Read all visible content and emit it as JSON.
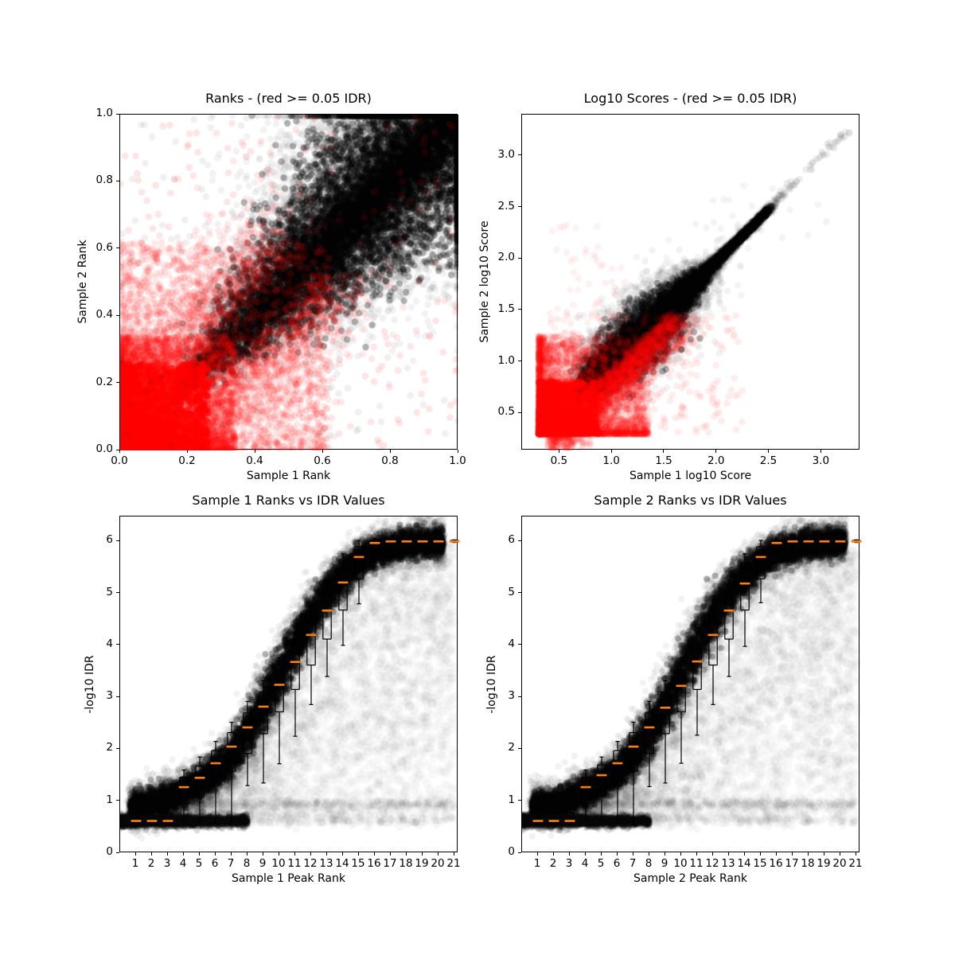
{
  "figure_title": "IDR diagnostic plots",
  "colors": {
    "reproducible_points": "#000000",
    "irreproducible_points": "#ff0000",
    "boxplot_median": "#ff7f0e",
    "boxplot_lines": "#000000",
    "background": "#ffffff"
  },
  "chart_data": [
    {
      "type": "scatter",
      "title": "Ranks - (red >= 0.05 IDR)",
      "xlabel": "Sample 1 Rank",
      "ylabel": "Sample 2 Rank",
      "xlim": [
        0,
        1
      ],
      "ylim": [
        0,
        1
      ],
      "grid": false,
      "legend": "none",
      "xticks": {
        "values": [
          0.0,
          0.2,
          0.4,
          0.6,
          0.8,
          1.0
        ],
        "labels": [
          "0.0",
          "0.2",
          "0.4",
          "0.6",
          "0.8",
          "1.0"
        ]
      },
      "yticks": {
        "values": [
          0.0,
          0.2,
          0.4,
          0.6,
          0.8,
          1.0
        ],
        "labels": [
          "0.0",
          "0.2",
          "0.4",
          "0.6",
          "0.8",
          "1.0"
        ]
      },
      "seed": 101,
      "clouds": [
        {
          "g": "fan",
          "n": 9000,
          "color": "#000000",
          "a": 0.05,
          "r": 4.4,
          "p": {
            "tip": 0.145,
            "tmax": 1.0,
            "tpow": 0.62,
            "w0": 0.012,
            "w1": 0.22,
            "clamp": 1
          }
        },
        {
          "g": "fan",
          "n": 7000,
          "color": "#000000",
          "a": 0.3,
          "r": 4.2,
          "p": {
            "tip": 0.15,
            "tmax": 1.0,
            "tpow": 0.55,
            "w0": 0.008,
            "w1": 0.175,
            "clamp": 1
          }
        },
        {
          "g": "diagBand",
          "n": 3000,
          "color": "#000000",
          "a": 0.25,
          "r": 4.2,
          "p": {
            "t0": 0.3,
            "dt": 0.7,
            "tpow": 0.5,
            "ox": 0,
            "sx": 0.035,
            "oy": 0,
            "sy": 0.035,
            "clamp": 1
          }
        },
        {
          "g": "pow2d",
          "n": 3800,
          "color": "#ff0000",
          "a": 0.12,
          "r": 4.4,
          "p": {
            "ox": 0,
            "sx": 0.34,
            "px": 1.6,
            "oy": 0,
            "sy": 0.34,
            "py": 1.6
          }
        },
        {
          "g": "pow2d",
          "n": 2400,
          "color": "#ff0000",
          "a": 0.5,
          "r": 4.2,
          "p": {
            "ox": 0,
            "sx": 0.26,
            "px": 1.7,
            "oy": 0,
            "sy": 0.26,
            "py": 1.7
          }
        },
        {
          "g": "pow2d",
          "n": 2600,
          "color": "#ff0000",
          "a": 0.09,
          "r": 4.4,
          "p": {
            "ox": 0,
            "sx": 0.62,
            "px": 1.4,
            "oy": 0,
            "sy": 0.62,
            "py": 1.4
          }
        },
        {
          "g": "diagBand",
          "n": 900,
          "color": "#ff0000",
          "a": 0.09,
          "r": 4.4,
          "p": {
            "t0": 0.15,
            "dt": 0.42,
            "tpow": 1,
            "ox": 0.02,
            "sx": 0.09,
            "absx": 1,
            "oy": -0.03,
            "sy": -0.09,
            "absy": 1
          }
        },
        {
          "g": "diagBand",
          "n": 700,
          "color": "#ff0000",
          "a": 0.09,
          "r": 4.4,
          "p": {
            "t0": 0.15,
            "dt": 0.38,
            "tpow": 1,
            "ox": -0.02,
            "sx": -0.08,
            "absx": 1,
            "oy": 0.03,
            "sy": 0.1,
            "absy": 1
          }
        },
        {
          "g": "uniform",
          "n": 230,
          "color": "#ff0000",
          "a": 0.1,
          "r": 4.4,
          "p": {
            "x0": 0,
            "x1": 1,
            "y0": 0,
            "y1": 1
          }
        },
        {
          "g": "uniform",
          "n": 170,
          "color": "#000000",
          "a": 0.06,
          "r": 4.4,
          "p": {
            "x0": 0,
            "x1": 1,
            "y0": 0,
            "y1": 1
          }
        }
      ]
    },
    {
      "type": "scatter",
      "title": "Log10 Scores - (red >= 0.05 IDR)",
      "xlabel": "Sample 1 log10 Score",
      "ylabel": "Sample 2 log10 Score",
      "xlim": [
        0.14,
        3.37
      ],
      "ylim": [
        0.14,
        3.4
      ],
      "grid": false,
      "legend": "none",
      "xticks": {
        "values": [
          0.5,
          1.0,
          1.5,
          2.0,
          2.5,
          3.0
        ],
        "labels": [
          "0.5",
          "1.0",
          "1.5",
          "2.0",
          "2.5",
          "3.0"
        ]
      },
      "yticks": {
        "values": [
          0.5,
          1.0,
          1.5,
          2.0,
          2.5,
          3.0
        ],
        "labels": [
          "0.5",
          "1.0",
          "1.5",
          "2.0",
          "2.5",
          "3.0"
        ]
      },
      "seed": 202,
      "clouds": [
        {
          "g": "diamond",
          "n": 8000,
          "color": "#000000",
          "a": 0.05,
          "r": 4.4,
          "p": {
            "t0": 0.78,
            "dt": 1.74,
            "tpow": 1.5,
            "w0": 0.03,
            "w1": 0.3,
            "tc": 1.3,
            "tw": 0.45,
            "ka": 0.9,
            "kq": 0.55,
            "oy": -0.02
          }
        },
        {
          "g": "diamond",
          "n": 6000,
          "color": "#000000",
          "a": 0.32,
          "r": 4.2,
          "p": {
            "t0": 0.78,
            "dt": 1.7,
            "tpow": 1.5,
            "w0": 0.02,
            "w1": 0.24,
            "tc": 1.28,
            "tw": 0.42,
            "ka": 0.85,
            "kq": 0.5,
            "oy": -0.02
          }
        },
        {
          "g": "diagBand",
          "n": 80,
          "color": "#000000",
          "a": 0.07,
          "r": 4.4,
          "p": {
            "t0": 2.45,
            "dt": 0.8,
            "tpow": 1.3,
            "ox": 0,
            "sx": 0.018,
            "oy": 0,
            "sy": 0.018
          }
        },
        {
          "g": "diagBand",
          "n": 90,
          "color": "#000000",
          "a": 0.045,
          "r": 4.4,
          "p": {
            "t0": 0.9,
            "dt": 1.7,
            "tpow": 1,
            "ox": 0,
            "sx": 0.22,
            "oy": 0,
            "sy": 0.22
          }
        },
        {
          "g": "pow2d",
          "n": 3800,
          "color": "#ff0000",
          "a": 0.11,
          "r": 4.4,
          "p": {
            "ox": 0.3,
            "sx": 1.05,
            "px": 2.4,
            "oy": 0.3,
            "sy": 0.95,
            "py": 2.6
          }
        },
        {
          "g": "pow2d",
          "n": 2300,
          "color": "#ff0000",
          "a": 0.45,
          "r": 4.2,
          "p": {
            "ox": 0.31,
            "sx": 0.55,
            "px": 2.2,
            "oy": 0.31,
            "sy": 0.5,
            "py": 2.4
          }
        },
        {
          "g": "diagBand",
          "n": 2200,
          "color": "#ff0000",
          "a": 0.1,
          "r": 4.4,
          "p": {
            "t0": 0.35,
            "dt": 1.15,
            "tpow": 1.3,
            "ox": 0.02,
            "sx": 0.14,
            "absx": 1,
            "oy": -0.02,
            "sy": -0.12,
            "absy": 1
          }
        },
        {
          "g": "uniform",
          "n": 260,
          "color": "#ff0000",
          "a": 0.07,
          "r": 4.4,
          "p": {
            "x0": 0.4,
            "x1": 2.25,
            "y0": 0.3,
            "y1": 1.45
          }
        },
        {
          "g": "uniform",
          "n": 60,
          "color": "#ff0000",
          "a": 0.055,
          "r": 4.4,
          "p": {
            "x0": 0.4,
            "x1": 1.15,
            "y0": 1.2,
            "y1": 2.35
          }
        }
      ]
    },
    {
      "type": "scatter",
      "title": "Sample 1 Ranks vs IDR Values",
      "xlabel": "Sample 1 Peak Rank",
      "ylabel": "-log10 IDR",
      "xlim": [
        0,
        21.25
      ],
      "ylim": [
        0,
        6.48
      ],
      "grid": false,
      "legend": "none",
      "xticks": {
        "values": [
          1,
          2,
          3,
          4,
          5,
          6,
          7,
          8,
          9,
          10,
          11,
          12,
          13,
          14,
          15,
          16,
          17,
          18,
          19,
          20,
          21
        ],
        "labels": [
          "1",
          "2",
          "3",
          "4",
          "5",
          "6",
          "7",
          "8",
          "9",
          "10",
          "11",
          "12",
          "13",
          "14",
          "15",
          "16",
          "17",
          "18",
          "19",
          "20",
          "21"
        ]
      },
      "yticks": {
        "values": [
          0,
          1,
          2,
          3,
          4,
          5,
          6
        ],
        "labels": [
          "0",
          "1",
          "2",
          "3",
          "4",
          "5",
          "6"
        ]
      },
      "seed": 303,
      "curve": {
        "top": 6.0,
        "drop": 5.1,
        "scale": 10.2,
        "pw": 3.0,
        "xoff": 1.0,
        "humpA": 0.18,
        "humpC": 4.5,
        "humpW": 2.0
      },
      "clouds": [
        {
          "g": "wash",
          "n": 3800,
          "color": "#000000",
          "a": 0.025,
          "r": 6.0,
          "p": {
            "x0": 2.5,
            "dx": 18.5,
            "base": 0.62,
            "pw": 0.72
          }
        },
        {
          "g": "hrow",
          "n": 500,
          "color": "#000000",
          "a": 0.028,
          "r": 4.5,
          "p": {
            "x0": 0.3,
            "dx": 20.7,
            "pw": 0.9,
            "y": 0.95,
            "jy": 0.05
          }
        },
        {
          "g": "hrow",
          "n": 230,
          "color": "#000000",
          "a": 0.03,
          "r": 5.0,
          "p": {
            "x0": 5,
            "dx": 16,
            "pw": 1,
            "y": 0.64,
            "jy": 0.06
          }
        },
        {
          "g": "hrow",
          "n": 140,
          "color": "#000000",
          "a": 0.02,
          "r": 5.5,
          "p": {
            "x0": 8,
            "dx": 13,
            "pw": 1,
            "y": 0.85,
            "jy": 0.1
          }
        },
        {
          "g": "sigmoid",
          "n": 8500,
          "color": "#000000",
          "a": 0.05,
          "r": 4.2,
          "p": {
            "x0": 0.5,
            "dx": 19.9,
            "jx": 0.55,
            "jy": 0.2
          }
        },
        {
          "g": "sigmoid",
          "n": 5200,
          "color": "#000000",
          "a": 0.3,
          "r": 4.0,
          "p": {
            "x0": 0.6,
            "dx": 19.7,
            "jx": 0.4,
            "jy": 0.13
          }
        },
        {
          "g": "hrow",
          "n": 2600,
          "color": "#000000",
          "a": 0.14,
          "r": 4.2,
          "p": {
            "x0": 0,
            "dx": 8.0,
            "pw": 1.45,
            "y": 0.62,
            "jy": 0.05
          }
        }
      ],
      "boxplot": {
        "median_color": "#ff7f0e",
        "box_color": "#000000",
        "ranks": [
          1,
          2,
          3,
          4,
          5,
          6,
          7,
          8,
          9,
          10,
          11,
          12,
          13,
          14,
          15,
          16,
          17,
          18,
          19,
          20,
          21
        ],
        "median": [
          0.62,
          0.62,
          0.62,
          1.27,
          1.45,
          1.73,
          2.05,
          2.42,
          2.82,
          3.24,
          3.68,
          4.2,
          4.67,
          5.21,
          5.7,
          5.97,
          6.0,
          6.0,
          6.0,
          6.0,
          6.0
        ],
        "q1": [
          0.58,
          0.58,
          0.6,
          0.95,
          1.08,
          1.3,
          1.58,
          1.92,
          2.3,
          2.72,
          3.15,
          3.62,
          4.12,
          4.68,
          5.28,
          5.82,
          5.96,
          5.97,
          5.98,
          5.98,
          5.99
        ],
        "q3": [
          0.66,
          0.68,
          0.78,
          1.46,
          1.68,
          1.97,
          2.32,
          2.7,
          3.1,
          3.52,
          4.0,
          4.5,
          4.98,
          5.48,
          5.9,
          6.02,
          6.02,
          6.02,
          6.02,
          6.02,
          6.02
        ],
        "whisker_low": [
          0.55,
          0.55,
          0.56,
          0.62,
          0.62,
          0.58,
          0.55,
          1.3,
          1.35,
          1.72,
          2.25,
          2.86,
          3.4,
          4.0,
          4.8,
          5.78,
          5.92,
          5.94,
          5.95,
          5.95,
          5.98
        ],
        "whisker_high": [
          0.7,
          0.78,
          1.0,
          1.6,
          1.85,
          2.15,
          2.52,
          2.92,
          3.32,
          3.76,
          4.25,
          4.76,
          5.25,
          5.76,
          6.02,
          6.05,
          6.04,
          6.04,
          6.04,
          6.04,
          6.03
        ]
      }
    },
    {
      "type": "scatter",
      "title": "Sample 2 Ranks vs IDR Values",
      "xlabel": "Sample 2 Peak Rank",
      "ylabel": "-log10 IDR",
      "xlim": [
        0,
        21.25
      ],
      "ylim": [
        0,
        6.48
      ],
      "grid": false,
      "legend": "none",
      "xticks": {
        "values": [
          1,
          2,
          3,
          4,
          5,
          6,
          7,
          8,
          9,
          10,
          11,
          12,
          13,
          14,
          15,
          16,
          17,
          18,
          19,
          20,
          21
        ],
        "labels": [
          "1",
          "2",
          "3",
          "4",
          "5",
          "6",
          "7",
          "8",
          "9",
          "10",
          "11",
          "12",
          "13",
          "14",
          "15",
          "16",
          "17",
          "18",
          "19",
          "20",
          "21"
        ]
      },
      "yticks": {
        "values": [
          0,
          1,
          2,
          3,
          4,
          5,
          6
        ],
        "labels": [
          "0",
          "1",
          "2",
          "3",
          "4",
          "5",
          "6"
        ]
      },
      "seed": 404,
      "curve": {
        "top": 6.0,
        "drop": 5.1,
        "scale": 10.2,
        "pw": 3.0,
        "xoff": 1.0,
        "humpA": 0.18,
        "humpC": 4.5,
        "humpW": 2.0
      },
      "clouds": [
        {
          "g": "wash",
          "n": 3800,
          "color": "#000000",
          "a": 0.025,
          "r": 6.0,
          "p": {
            "x0": 2.5,
            "dx": 18.5,
            "base": 0.62,
            "pw": 0.72
          }
        },
        {
          "g": "hrow",
          "n": 500,
          "color": "#000000",
          "a": 0.028,
          "r": 4.5,
          "p": {
            "x0": 0.3,
            "dx": 20.7,
            "pw": 0.9,
            "y": 0.95,
            "jy": 0.05
          }
        },
        {
          "g": "hrow",
          "n": 230,
          "color": "#000000",
          "a": 0.03,
          "r": 5.0,
          "p": {
            "x0": 5,
            "dx": 16,
            "pw": 1,
            "y": 0.64,
            "jy": 0.06
          }
        },
        {
          "g": "hrow",
          "n": 140,
          "color": "#000000",
          "a": 0.02,
          "r": 5.5,
          "p": {
            "x0": 8,
            "dx": 13,
            "pw": 1,
            "y": 0.85,
            "jy": 0.1
          }
        },
        {
          "g": "sigmoid",
          "n": 8500,
          "color": "#000000",
          "a": 0.05,
          "r": 4.2,
          "p": {
            "x0": 0.5,
            "dx": 19.9,
            "jx": 0.55,
            "jy": 0.2
          }
        },
        {
          "g": "sigmoid",
          "n": 5200,
          "color": "#000000",
          "a": 0.3,
          "r": 4.0,
          "p": {
            "x0": 0.6,
            "dx": 19.7,
            "jx": 0.4,
            "jy": 0.13
          }
        },
        {
          "g": "hrow",
          "n": 2600,
          "color": "#000000",
          "a": 0.14,
          "r": 4.2,
          "p": {
            "x0": 0,
            "dx": 8.0,
            "pw": 1.45,
            "y": 0.62,
            "jy": 0.05
          }
        }
      ],
      "boxplot": {
        "median_color": "#ff7f0e",
        "box_color": "#000000",
        "ranks": [
          1,
          2,
          3,
          4,
          5,
          6,
          7,
          8,
          9,
          10,
          11,
          12,
          13,
          14,
          15,
          16,
          17,
          18,
          19,
          20,
          21
        ],
        "median": [
          0.62,
          0.62,
          0.62,
          1.27,
          1.5,
          1.73,
          2.05,
          2.42,
          2.8,
          3.22,
          3.69,
          4.2,
          4.67,
          5.19,
          5.7,
          5.97,
          6.0,
          6.0,
          6.0,
          6.0,
          6.0
        ],
        "q1": [
          0.58,
          0.58,
          0.6,
          0.95,
          1.1,
          1.3,
          1.58,
          1.92,
          2.3,
          2.72,
          3.15,
          3.62,
          4.12,
          4.68,
          5.28,
          5.82,
          5.96,
          5.97,
          5.98,
          5.98,
          5.99
        ],
        "q3": [
          0.66,
          0.68,
          0.78,
          1.46,
          1.7,
          1.97,
          2.32,
          2.7,
          3.1,
          3.52,
          4.0,
          4.5,
          4.98,
          5.48,
          5.9,
          6.02,
          6.02,
          6.02,
          6.02,
          6.02,
          6.02
        ],
        "whisker_low": [
          0.55,
          0.55,
          0.56,
          0.62,
          0.62,
          0.58,
          0.55,
          1.28,
          1.35,
          1.73,
          2.27,
          2.86,
          3.4,
          3.98,
          4.82,
          5.78,
          5.92,
          5.94,
          5.95,
          5.95,
          5.98
        ],
        "whisker_high": [
          0.7,
          0.78,
          1.0,
          1.6,
          1.85,
          2.15,
          2.52,
          2.92,
          3.32,
          3.76,
          4.25,
          4.76,
          5.25,
          5.76,
          6.02,
          6.05,
          6.04,
          6.04,
          6.04,
          6.04,
          6.03
        ]
      }
    }
  ]
}
